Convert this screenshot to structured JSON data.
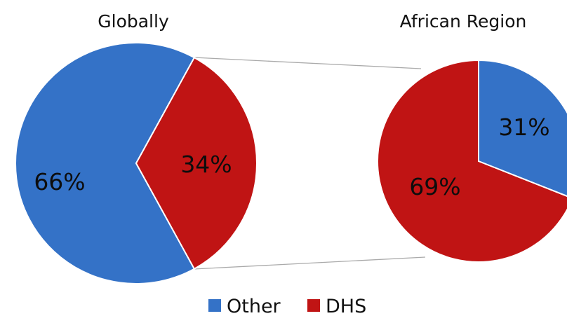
{
  "chart_data": {
    "type": "pie",
    "categories": [
      "Other",
      "DHS"
    ],
    "colors": {
      "Other": "#3472C7",
      "DHS": "#C01414"
    },
    "legend": {
      "placement": "bottom",
      "entries": [
        "Other",
        "DHS"
      ]
    },
    "charts": [
      {
        "title": "Globally",
        "slices": [
          {
            "label": "Other",
            "value": 66,
            "display": "66%"
          },
          {
            "label": "DHS",
            "value": 34,
            "display": "34%"
          }
        ]
      },
      {
        "title": "African Region",
        "slices": [
          {
            "label": "Other",
            "value": 31,
            "display": "31%"
          },
          {
            "label": "DHS",
            "value": 69,
            "display": "69%"
          }
        ]
      }
    ]
  }
}
